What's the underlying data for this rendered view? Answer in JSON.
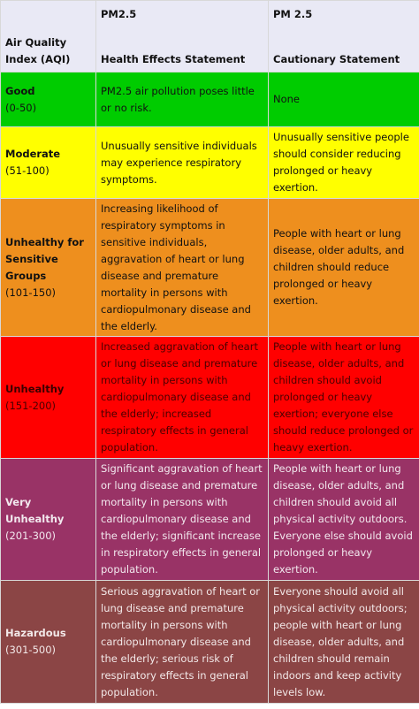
{
  "header": [
    {
      "top": "",
      "bottom": "Air Quality Index  (AQI)"
    },
    {
      "top": "PM2.5",
      "bottom": "Health Effects Statement"
    },
    {
      "top": "PM 2.5",
      "bottom": "Cautionary Statement"
    }
  ],
  "rows": [
    {
      "category": "Good",
      "range": "(0-50)",
      "health": "PM2.5 air pollution poses little or no risk.",
      "caution": "None"
    },
    {
      "category": "Moderate",
      "range": "(51-100)",
      "health": "Unusually sensitive individuals may experience respiratory symptoms.",
      "caution": "Unusually sensitive people should consider reducing prolonged or heavy exertion."
    },
    {
      "category": "Unhealthy for Sensitive Groups",
      "range": "(101-150)",
      "health": "Increasing likelihood of respiratory symptoms in sensitive individuals, aggravation of heart or lung disease and premature mortality in persons with cardiopulmonary disease and the elderly.",
      "caution": "People with heart or lung disease, older adults, and children should reduce prolonged or heavy exertion."
    },
    {
      "category": "Unhealthy",
      "range": "(151-200)",
      "health": "Increased aggravation of heart or lung disease and premature mortality in persons with cardiopulmonary disease and the elderly; increased respiratory effects in general population.",
      "caution": "People with heart or lung disease, older adults, and children should avoid prolonged or heavy exertion; everyone else should reduce prolonged or heavy exertion."
    },
    {
      "category": "Very Unhealthy",
      "range": "(201-300)",
      "health": "Significant aggravation of heart or lung disease and premature mortality in persons with cardiopulmonary disease and the elderly; significant increase in respiratory effects in general population.",
      "caution": "People with heart or lung disease, older adults, and children should avoid all physical activity outdoors. Everyone else should avoid prolonged or heavy exertion."
    },
    {
      "category": "Hazardous",
      "range": "(301-500)",
      "health": "Serious aggravation of heart or lung disease and premature mortality in persons with cardiopulmonary disease and the elderly; serious risk of respiratory effects in general population.",
      "caution": "Everyone should avoid all physical activity outdoors; people with heart or lung disease, older adults, and children should remain indoors and keep activity levels low."
    }
  ]
}
